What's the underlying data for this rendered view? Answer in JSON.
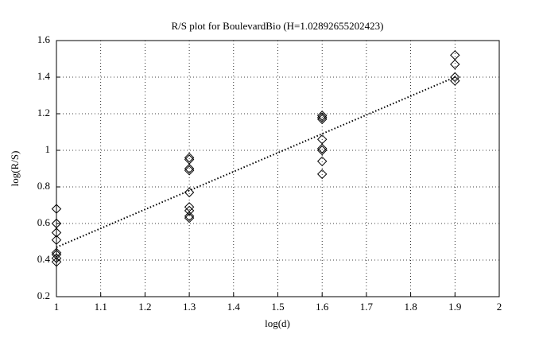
{
  "chart_data": {
    "type": "scatter",
    "title": "R/S plot for BoulevardBio (H=1.02892655202423)",
    "x_label": "log(d)",
    "y_label": "log(R/S)",
    "x": [
      1,
      1,
      1,
      1,
      1,
      1,
      1,
      1,
      1.3,
      1.3,
      1.3,
      1.3,
      1.3,
      1.3,
      1.3,
      1.3,
      1.3,
      1.6,
      1.6,
      1.6,
      1.6,
      1.6,
      1.6,
      1.6,
      1.6,
      1.9,
      1.9,
      1.9,
      1.9
    ],
    "values": [
      0.68,
      0.6,
      0.55,
      0.51,
      0.44,
      0.43,
      0.41,
      0.39,
      0.96,
      0.95,
      0.9,
      0.89,
      0.77,
      0.69,
      0.67,
      0.64,
      0.63,
      1.19,
      1.18,
      1.17,
      1.06,
      1.01,
      1.0,
      0.94,
      0.87,
      1.52,
      1.47,
      1.4,
      1.38
    ],
    "color": "#000000",
    "fit_line": {
      "x": [
        1,
        1.9
      ],
      "values": [
        0.47,
        1.4
      ]
    },
    "xlim": [
      1,
      2
    ],
    "xticks": [
      1,
      1.1,
      1.2,
      1.3,
      1.4,
      1.5,
      1.6,
      1.7,
      1.8,
      1.9,
      2
    ],
    "ylim": [
      0.2,
      1.6
    ],
    "yticks": [
      0.2,
      0.4,
      0.6,
      0.8,
      1,
      1.2,
      1.4,
      1.6
    ],
    "grid": true
  }
}
